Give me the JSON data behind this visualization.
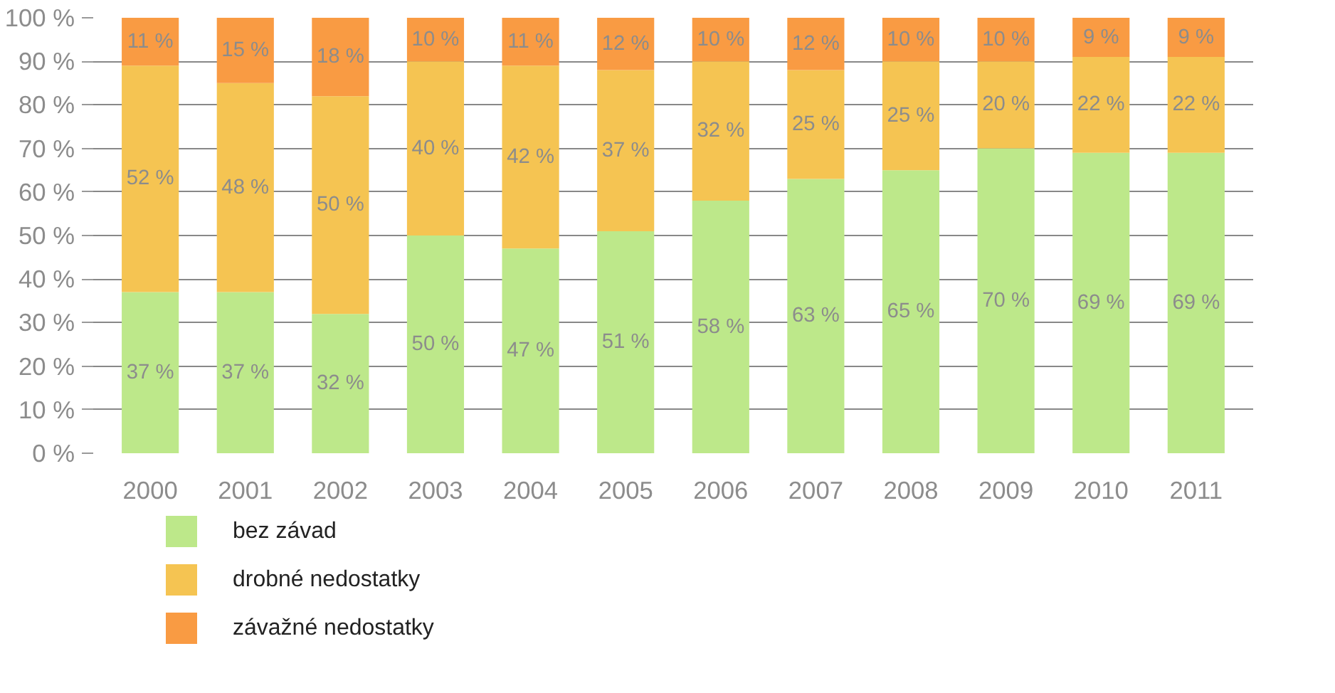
{
  "chart_data": {
    "type": "bar",
    "stacked": true,
    "categories": [
      "2000",
      "2001",
      "2002",
      "2003",
      "2004",
      "2005",
      "2006",
      "2007",
      "2008",
      "2009",
      "2010",
      "2011"
    ],
    "series": [
      {
        "name": "bez závad",
        "color": "#bde88a",
        "values": [
          37,
          37,
          32,
          50,
          47,
          51,
          58,
          63,
          65,
          70,
          69,
          69
        ],
        "value_labels": [
          "37 %",
          "37 %",
          "32 %",
          "50 %",
          "47 %",
          "51 %",
          "58 %",
          "63 %",
          "65 %",
          "70 %",
          "69 %",
          "69 %"
        ]
      },
      {
        "name": "drobné nedostatky",
        "color": "#f5c452",
        "values": [
          52,
          48,
          50,
          40,
          42,
          37,
          32,
          25,
          25,
          20,
          22,
          22
        ],
        "value_labels": [
          "52 %",
          "48 %",
          "50 %",
          "40 %",
          "42 %",
          "37 %",
          "32 %",
          "25 %",
          "25 %",
          "20 %",
          "22 %",
          "22 %"
        ]
      },
      {
        "name": "závažné nedostatky",
        "color": "#f99b43",
        "values": [
          11,
          15,
          18,
          10,
          11,
          12,
          10,
          12,
          10,
          10,
          9,
          9
        ],
        "value_labels": [
          "11 %",
          "15 %",
          "18 %",
          "10 %",
          "11 %",
          "12 %",
          "10 %",
          "12 %",
          "10 %",
          "10 %",
          "9 %",
          "9 %"
        ]
      }
    ],
    "ylim": [
      0,
      100
    ],
    "yticks": [
      {
        "value": 0,
        "label": "0 %"
      },
      {
        "value": 10,
        "label": "10 %"
      },
      {
        "value": 20,
        "label": "20 %"
      },
      {
        "value": 30,
        "label": "30 %"
      },
      {
        "value": 40,
        "label": "40 %"
      },
      {
        "value": 50,
        "label": "50 %"
      },
      {
        "value": 60,
        "label": "60 %"
      },
      {
        "value": 70,
        "label": "70 %"
      },
      {
        "value": 80,
        "label": "80 %"
      },
      {
        "value": 90,
        "label": "90 %"
      },
      {
        "value": 100,
        "label": "100 %"
      }
    ],
    "grid": "y",
    "legend": "bottom left"
  }
}
